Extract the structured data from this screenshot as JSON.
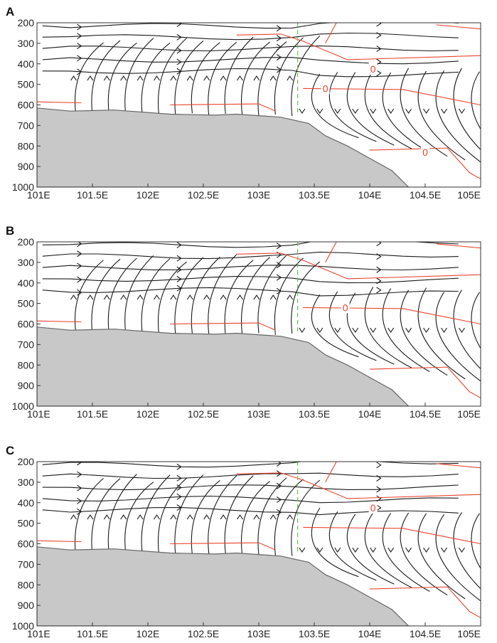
{
  "chart_data": [
    {
      "type": "streamline-cross-section",
      "panel": "A",
      "xticks": [
        "101E",
        "101.5E",
        "102E",
        "102.5E",
        "103E",
        "103.5E",
        "104E",
        "104.5E",
        "105E"
      ],
      "xlim": [
        101,
        105
      ],
      "yticks": [
        "200",
        "300",
        "400",
        "500",
        "600",
        "700",
        "800",
        "900",
        "1000"
      ],
      "ylim": [
        1000,
        200
      ],
      "contour_labels": [
        {
          "text": "0",
          "lon": 104.03,
          "p": 425
        },
        {
          "text": "0",
          "lon": 103.6,
          "p": 520
        },
        {
          "text": "0",
          "lon": 104.5,
          "p": 830
        }
      ],
      "section_line_lon": 103.35,
      "terrain": [
        [
          101,
          615
        ],
        [
          101.3,
          630
        ],
        [
          101.7,
          625
        ],
        [
          102.2,
          645
        ],
        [
          102.6,
          650
        ],
        [
          102.8,
          645
        ],
        [
          103.2,
          660
        ],
        [
          103.45,
          690
        ],
        [
          103.6,
          750
        ],
        [
          103.8,
          800
        ],
        [
          104.0,
          860
        ],
        [
          104.2,
          920
        ],
        [
          104.35,
          1000
        ]
      ]
    },
    {
      "type": "streamline-cross-section",
      "panel": "B",
      "xticks": [
        "101E",
        "101.5E",
        "102E",
        "102.5E",
        "103E",
        "103.5E",
        "104E",
        "104.5E",
        "105E"
      ],
      "xlim": [
        101,
        105
      ],
      "yticks": [
        "200",
        "300",
        "400",
        "500",
        "600",
        "700",
        "800",
        "900",
        "1000"
      ],
      "ylim": [
        1000,
        200
      ],
      "contour_labels": [
        {
          "text": "0",
          "lon": 103.78,
          "p": 520
        }
      ],
      "section_line_lon": 103.35,
      "terrain": [
        [
          101,
          615
        ],
        [
          101.3,
          630
        ],
        [
          101.7,
          625
        ],
        [
          102.2,
          645
        ],
        [
          102.6,
          650
        ],
        [
          102.8,
          645
        ],
        [
          103.2,
          660
        ],
        [
          103.45,
          690
        ],
        [
          103.6,
          750
        ],
        [
          103.8,
          800
        ],
        [
          104.0,
          860
        ],
        [
          104.2,
          920
        ],
        [
          104.35,
          1000
        ]
      ]
    },
    {
      "type": "streamline-cross-section",
      "panel": "C",
      "xticks": [
        "101E",
        "101.5E",
        "102E",
        "102.5E",
        "103E",
        "103.5E",
        "104E",
        "104.5E",
        "105E"
      ],
      "xlim": [
        101,
        105
      ],
      "yticks": [
        "200",
        "300",
        "400",
        "500",
        "600",
        "700",
        "800",
        "900",
        "1000"
      ],
      "ylim": [
        1000,
        200
      ],
      "contour_labels": [
        {
          "text": "0",
          "lon": 104.03,
          "p": 425
        }
      ],
      "section_line_lon": 103.35,
      "terrain": [
        [
          101,
          615
        ],
        [
          101.3,
          630
        ],
        [
          101.7,
          625
        ],
        [
          102.2,
          645
        ],
        [
          102.6,
          650
        ],
        [
          102.8,
          645
        ],
        [
          103.2,
          660
        ],
        [
          103.45,
          690
        ],
        [
          103.6,
          750
        ],
        [
          103.8,
          800
        ],
        [
          104.0,
          860
        ],
        [
          104.2,
          920
        ],
        [
          104.35,
          1000
        ]
      ]
    }
  ]
}
